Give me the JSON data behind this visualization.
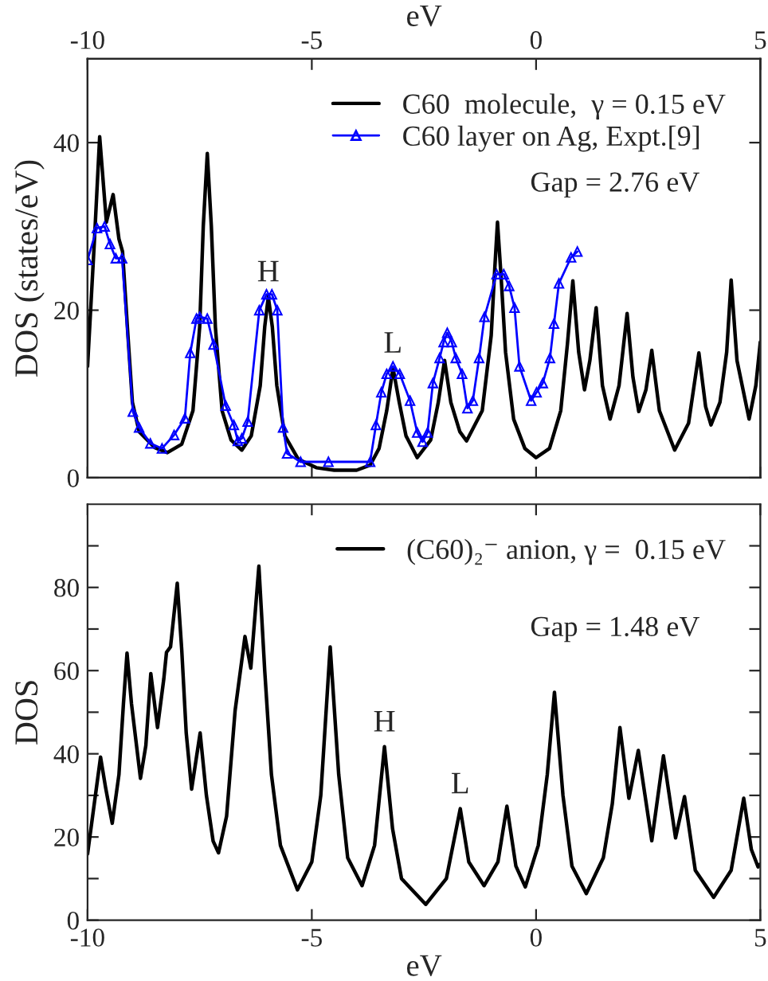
{
  "chart_data": [
    {
      "type": "line",
      "ylabel": "DOS (states/eV)",
      "x2label": "eV",
      "xlim": [
        -10,
        5
      ],
      "xticks": [
        -10,
        -5,
        0,
        5
      ],
      "x2lim": [
        -10,
        5
      ],
      "x2ticks": [
        -10,
        -5,
        0,
        5
      ],
      "ylim": [
        0,
        50
      ],
      "yticks": [
        0,
        20,
        40
      ],
      "tick_labels": "y",
      "grid": false,
      "legend": "top right",
      "series": [
        {
          "name": "C60  molecule,  γ = 0.15 eV",
          "color": "#000000",
          "x": [
            -10,
            -9.85,
            -9.73,
            -9.58,
            -9.43,
            -9.3,
            -9.22,
            -9.1,
            -9.0,
            -8.85,
            -8.5,
            -8.22,
            -7.9,
            -7.65,
            -7.5,
            -7.42,
            -7.33,
            -7.24,
            -7.15,
            -7.0,
            -6.8,
            -6.56,
            -6.35,
            -6.15,
            -6.05,
            -5.97,
            -5.88,
            -5.78,
            -5.6,
            -5.3,
            -4.9,
            -4.5,
            -4.0,
            -3.7,
            -3.5,
            -3.33,
            -3.19,
            -3.05,
            -2.9,
            -2.65,
            -2.35,
            -2.18,
            -2.04,
            -1.9,
            -1.7,
            -1.55,
            -1.2,
            -1.0,
            -0.92,
            -0.86,
            -0.78,
            -0.68,
            -0.5,
            -0.25,
            0.0,
            0.3,
            0.55,
            0.7,
            0.82,
            0.95,
            1.08,
            1.2,
            1.34,
            1.48,
            1.65,
            1.85,
            2.03,
            2.16,
            2.29,
            2.45,
            2.58,
            2.75,
            3.09,
            3.4,
            3.63,
            3.78,
            3.9,
            4.1,
            4.25,
            4.35,
            4.48,
            4.75,
            4.9,
            5.0
          ],
          "values": [
            13.3,
            28,
            40.7,
            30.5,
            33.8,
            28.5,
            27.0,
            17,
            9,
            5.5,
            3.6,
            3.0,
            4.0,
            8,
            18,
            30,
            38.7,
            30,
            18,
            8,
            4.5,
            3.3,
            5,
            11,
            18,
            21.6,
            18,
            11,
            5,
            2.2,
            1.2,
            0.9,
            0.9,
            1.5,
            3.5,
            8,
            13.1,
            9,
            5,
            2.4,
            4.5,
            9,
            14.0,
            9,
            5.5,
            4.4,
            8,
            17,
            25,
            30.5,
            24,
            15,
            7,
            3.5,
            2.4,
            3.5,
            8,
            16,
            23.5,
            15,
            10.5,
            14,
            20.3,
            11,
            7.0,
            11,
            19.6,
            12,
            7.9,
            10.5,
            15.2,
            8,
            3.3,
            6.5,
            14.9,
            8.5,
            6.3,
            9,
            15,
            23.6,
            14,
            7.0,
            11,
            16.2
          ]
        },
        {
          "name": "C60 layer on Ag, Expt.[9]",
          "color": "#0000ff",
          "marker": "triangle",
          "x": [
            -10,
            -9.79,
            -9.62,
            -9.5,
            -9.37,
            -9.23,
            -8.99,
            -8.85,
            -8.6,
            -8.34,
            -8.07,
            -7.83,
            -7.71,
            -7.57,
            -7.5,
            -7.33,
            -7.19,
            -6.92,
            -6.74,
            -6.65,
            -6.56,
            -6.43,
            -6.17,
            -6.01,
            -5.89,
            -5.77,
            -5.64,
            -5.55,
            -5.25,
            -4.63,
            -4.2,
            -3.7,
            -3.57,
            -3.45,
            -3.33,
            -3.19,
            -3.04,
            -2.81,
            -2.65,
            -2.53,
            -2.42,
            -2.3,
            -2.15,
            -2.06,
            -1.98,
            -1.88,
            -1.79,
            -1.65,
            -1.53,
            -1.41,
            -1.27,
            -1.15,
            -0.88,
            -0.72,
            -0.6,
            -0.48,
            -0.37,
            -0.11,
            0.01,
            0.15,
            0.31,
            0.4,
            0.51,
            0.78,
            0.92
          ],
          "values": [
            26.0,
            29.8,
            30.0,
            27.9,
            26.2,
            26.2,
            7.9,
            6.0,
            4.1,
            3.5,
            5.1,
            7.1,
            14.9,
            19.0,
            19.2,
            19.0,
            15.9,
            8.6,
            6.3,
            4.4,
            4.7,
            6.7,
            20.0,
            21.9,
            21.9,
            20.0,
            6.0,
            2.9,
            1.9,
            1.9,
            null,
            1.9,
            6.3,
            10.2,
            12.4,
            13.3,
            12.4,
            9.2,
            5.4,
            4.3,
            5.4,
            11.3,
            14.3,
            16.2,
            17.3,
            16.2,
            14.3,
            12.4,
            8.3,
            9.2,
            14.3,
            19.2,
            24.3,
            24.3,
            22.9,
            20.3,
            13.3,
            9.2,
            10.2,
            11.3,
            14.3,
            18.4,
            23.2,
            26.3,
            27.0
          ]
        }
      ],
      "annotations": [
        "Gap = 2.76 eV",
        {
          "text": "H",
          "x": -5.97,
          "y": 21.6
        },
        {
          "text": "L",
          "x": -3.19,
          "y": 13.1
        }
      ]
    },
    {
      "type": "line",
      "xlabel": "eV",
      "ylabel": "DOS",
      "xlim": [
        -10,
        5
      ],
      "xticks": [
        -10,
        -5,
        0,
        5
      ],
      "ylim": [
        0,
        100
      ],
      "yticks": [
        0,
        {
          "value": 10,
          "label": null
        },
        20,
        {
          "value": 30,
          "label": null
        },
        40,
        {
          "value": 50,
          "label": null
        },
        60,
        {
          "value": 70,
          "label": null
        },
        80,
        {
          "value": 90,
          "label": null
        }
      ],
      "grid": false,
      "legend": "top right",
      "series": [
        {
          "name": "(C60)₂⁻ anion, γ =  0.15 eV",
          "color": "#000000",
          "x": [
            -10,
            -9.85,
            -9.71,
            -9.6,
            -9.45,
            -9.3,
            -9.2,
            -9.12,
            -9.02,
            -8.82,
            -8.7,
            -8.59,
            -8.44,
            -8.3,
            -8.24,
            -8.15,
            -8.0,
            -7.9,
            -7.8,
            -7.68,
            -7.49,
            -7.35,
            -7.2,
            -7.08,
            -6.9,
            -6.71,
            -6.49,
            -6.36,
            -6.18,
            -6.05,
            -5.9,
            -5.7,
            -5.32,
            -5.0,
            -4.8,
            -4.59,
            -4.4,
            -4.2,
            -3.88,
            -3.6,
            -3.38,
            -3.2,
            -3.0,
            -2.46,
            -2.0,
            -1.69,
            -1.5,
            -1.16,
            -0.85,
            -0.65,
            -0.45,
            -0.24,
            0.05,
            0.25,
            0.41,
            0.6,
            0.8,
            1.12,
            1.5,
            1.7,
            1.87,
            2.07,
            2.28,
            2.58,
            2.84,
            3.11,
            3.31,
            3.55,
            3.96,
            4.35,
            4.63,
            4.8,
            4.95,
            5.0
          ],
          "values": [
            15.9,
            28,
            39.2,
            32,
            23.3,
            35,
            52,
            64.2,
            52,
            34.1,
            42,
            59.3,
            46.3,
            58,
            64.4,
            65.7,
            81.0,
            65,
            45,
            31.5,
            45.0,
            30,
            19,
            16.2,
            25,
            50.4,
            68.2,
            60.6,
            85.1,
            60,
            35,
            18,
            7.3,
            14,
            30,
            65.7,
            35,
            15,
            8.3,
            18,
            41.7,
            22,
            10,
            3.8,
            10,
            26.8,
            14,
            8.3,
            14,
            27.4,
            13,
            8.0,
            18,
            35,
            54.8,
            30,
            13,
            6.4,
            15,
            28,
            46.3,
            29.3,
            40.8,
            19.1,
            39.5,
            19.8,
            29.7,
            12,
            5.5,
            12,
            29.3,
            17,
            12.8,
            13.5
          ]
        }
      ],
      "annotations": [
        "Gap = 1.48 eV",
        {
          "text": "H",
          "x": -3.38,
          "y": 41.7
        },
        {
          "text": "L",
          "x": -1.69,
          "y": 26.8
        }
      ]
    }
  ]
}
